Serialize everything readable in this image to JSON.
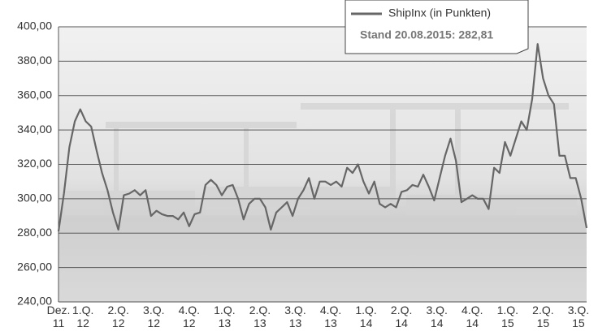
{
  "chart_data": {
    "type": "line",
    "x": [
      0,
      2,
      4,
      6,
      8,
      10,
      12,
      14,
      16,
      18,
      20,
      22,
      24,
      26,
      28,
      30,
      32,
      34,
      36,
      38,
      40,
      42,
      44,
      46,
      48,
      50,
      52,
      54,
      56,
      58,
      60,
      62,
      64,
      66,
      68,
      70,
      72,
      74,
      76,
      78,
      80,
      82,
      84,
      86,
      88,
      90,
      92,
      94,
      96,
      98,
      100,
      102,
      104,
      106,
      108,
      110,
      112,
      114,
      116,
      118,
      120,
      122,
      124,
      126,
      128,
      130,
      132,
      134,
      136,
      138,
      140,
      142,
      144,
      146,
      148,
      150,
      152,
      154,
      156,
      158,
      160,
      162,
      164,
      166,
      168,
      170,
      172,
      174,
      176,
      178,
      180,
      182,
      184,
      186,
      188,
      190,
      192,
      194
    ],
    "series": [
      {
        "name": "ShipInx (in Punkten)",
        "color": "#666666",
        "values": [
          281,
          303,
          330,
          345,
          352,
          345,
          342,
          328,
          315,
          305,
          292,
          282,
          302,
          303,
          305,
          302,
          305,
          290,
          293,
          291,
          290,
          290,
          288,
          292,
          284,
          291,
          292,
          308,
          311,
          308,
          302,
          307,
          308,
          300,
          288,
          297,
          300,
          300,
          295,
          282,
          292,
          295,
          298,
          290,
          300,
          305,
          312,
          300,
          310,
          310,
          308,
          310,
          307,
          318,
          315,
          320,
          310,
          303,
          310,
          297,
          295,
          297,
          295,
          304,
          305,
          308,
          307,
          314,
          307,
          299,
          312,
          325,
          335,
          322,
          298,
          300,
          302,
          300,
          300,
          294,
          318,
          315,
          333,
          325,
          335,
          345,
          340,
          358,
          390,
          370,
          360,
          355,
          325,
          325,
          312,
          312,
          300,
          283
        ]
      }
    ],
    "annotation": "Stand 20.08.2015: 282,81",
    "xlim": [
      0,
      194
    ],
    "xticks": [
      {
        "value": 0,
        "label": "Dez. 11"
      },
      {
        "value": 9,
        "label": "1.Q. 12"
      },
      {
        "value": 22,
        "label": "2.Q. 12"
      },
      {
        "value": 35,
        "label": "3.Q. 12"
      },
      {
        "value": 48,
        "label": "4.Q. 12"
      },
      {
        "value": 61,
        "label": "1.Q. 13"
      },
      {
        "value": 74,
        "label": "2.Q. 13"
      },
      {
        "value": 87,
        "label": "3.Q. 13"
      },
      {
        "value": 100,
        "label": "4.Q. 13"
      },
      {
        "value": 113,
        "label": "1.Q. 14"
      },
      {
        "value": 126,
        "label": "2.Q. 14"
      },
      {
        "value": 139,
        "label": "3.Q. 14"
      },
      {
        "value": 152,
        "label": "4.Q. 14"
      },
      {
        "value": 165,
        "label": "1.Q. 15"
      },
      {
        "value": 178,
        "label": "2.Q. 15"
      },
      {
        "value": 191,
        "label": "3.Q. 15"
      }
    ],
    "ylim": [
      240,
      400
    ],
    "yticks": [
      {
        "value": 240,
        "label": "240,00"
      },
      {
        "value": 260,
        "label": "260,00"
      },
      {
        "value": 280,
        "label": "280,00"
      },
      {
        "value": 300,
        "label": "300,00"
      },
      {
        "value": 320,
        "label": "320,00"
      },
      {
        "value": 340,
        "label": "340,00"
      },
      {
        "value": 360,
        "label": "360,00"
      },
      {
        "value": 380,
        "label": "380,00"
      },
      {
        "value": 400,
        "label": "400,00"
      }
    ],
    "grid": true
  }
}
